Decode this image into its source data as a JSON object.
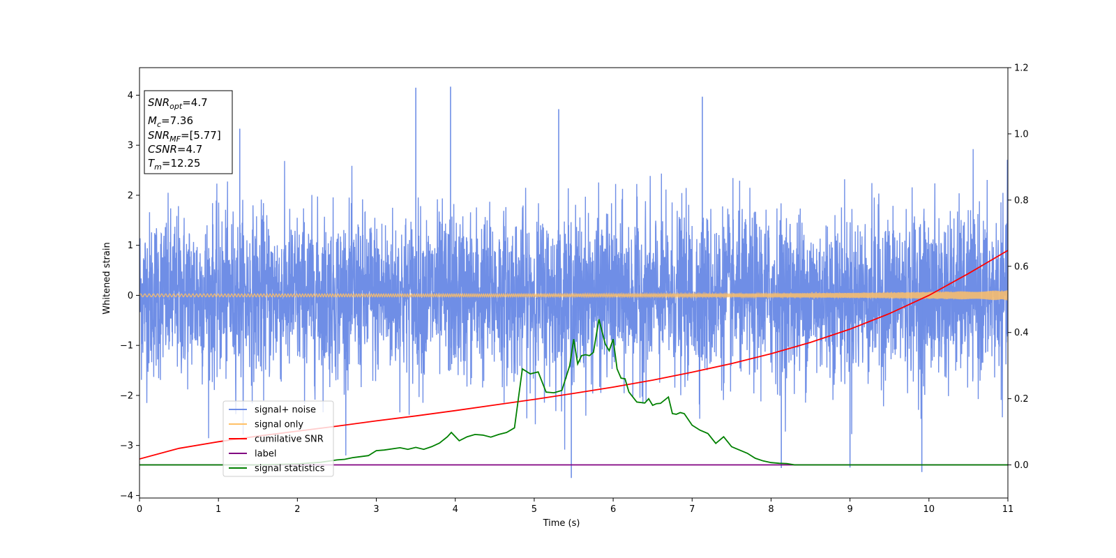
{
  "chart_data": {
    "type": "line",
    "xlabel": "Time (s)",
    "ylabel": "Whitened strain",
    "xlim": [
      0,
      11
    ],
    "ylim_left": [
      -4.05,
      4.55
    ],
    "ylim_right": [
      -0.1,
      1.2
    ],
    "x_ticks": [
      "0",
      "1",
      "2",
      "3",
      "4",
      "5",
      "6",
      "7",
      "8",
      "9",
      "10",
      "11"
    ],
    "y_left_ticks": [
      "4",
      "3",
      "2",
      "1",
      "0",
      "−1",
      "−2",
      "−3",
      "−4"
    ],
    "y_right_ticks": [
      "1.2",
      "1.0",
      "0.8",
      "0.6",
      "0.4",
      "0.2",
      "0.0"
    ],
    "y_left_tick_values": [
      4,
      3,
      2,
      1,
      0,
      -1,
      -2,
      -3,
      -4
    ],
    "y_right_tick_values": [
      1.2,
      1.0,
      0.8,
      0.6,
      0.4,
      0.2,
      0.0
    ],
    "legend_location": "lower-left",
    "info_box": {
      "snr_opt": {
        "base": "SNR",
        "sub": "opt",
        "value": "=4.7"
      },
      "mc": {
        "base": "M",
        "sub": "c",
        "value": "=7.36"
      },
      "snr_mf": {
        "base": "SNR",
        "sub": "MF",
        "value": "=[5.77]"
      },
      "csnr": {
        "base": "CSNR",
        "value": "=4.7"
      },
      "tm": {
        "base": "T",
        "sub": "m",
        "value": "=12.25"
      }
    },
    "series": [
      {
        "name": "signal+ noise",
        "axis": "left",
        "color": "#6f8ee6",
        "description_type": "noise",
        "notable_spikes": [
          {
            "x": 3.5,
            "y": 4.15
          },
          {
            "x": 3.94,
            "y": 4.17
          },
          {
            "x": 7.13,
            "y": 3.97
          },
          {
            "x": 5.31,
            "y": 3.72
          },
          {
            "x": 1.27,
            "y": 3.33
          },
          {
            "x": 5.47,
            "y": -3.65
          },
          {
            "x": 9.91,
            "y": -3.53
          },
          {
            "x": 8.13,
            "y": -3.45
          },
          {
            "x": 9.0,
            "y": -3.44
          }
        ]
      },
      {
        "name": "signal only",
        "axis": "left",
        "color": "#ffc066",
        "description_type": "chirp",
        "amplitude_start": 0.03,
        "amplitude_end": 0.1
      },
      {
        "name": "cumilative SNR",
        "axis": "right",
        "color": "#ff0000",
        "x": [
          0,
          0.5,
          1,
          1.5,
          2,
          2.5,
          3,
          3.5,
          4,
          4.5,
          5,
          5.5,
          6,
          6.5,
          7,
          7.5,
          8,
          8.5,
          9,
          9.5,
          10,
          10.5,
          11
        ],
        "values": [
          0.018,
          0.05,
          0.07,
          0.087,
          0.102,
          0.117,
          0.133,
          0.148,
          0.164,
          0.181,
          0.198,
          0.216,
          0.235,
          0.256,
          0.28,
          0.306,
          0.336,
          0.37,
          0.41,
          0.457,
          0.512,
          0.578,
          0.648
        ]
      },
      {
        "name": "label",
        "axis": "right",
        "color": "#800080",
        "x": [
          0,
          11
        ],
        "values": [
          0.0,
          0.0
        ]
      },
      {
        "name": "signal statistics",
        "axis": "right",
        "color": "#008000",
        "x": [
          0,
          1.5,
          2.0,
          2.3,
          2.5,
          2.6,
          2.7,
          2.8,
          2.9,
          3.0,
          3.1,
          3.3,
          3.4,
          3.5,
          3.6,
          3.7,
          3.8,
          3.9,
          3.95,
          4.05,
          4.15,
          4.25,
          4.35,
          4.45,
          4.55,
          4.65,
          4.75,
          4.85,
          4.95,
          5.05,
          5.15,
          5.25,
          5.35,
          5.45,
          5.5,
          5.55,
          5.6,
          5.65,
          5.7,
          5.75,
          5.82,
          5.9,
          5.95,
          6.0,
          6.05,
          6.1,
          6.15,
          6.2,
          6.3,
          6.4,
          6.45,
          6.5,
          6.55,
          6.6,
          6.7,
          6.75,
          6.8,
          6.85,
          6.9,
          7.0,
          7.1,
          7.2,
          7.3,
          7.4,
          7.5,
          7.55,
          7.6,
          7.7,
          7.8,
          7.9,
          8.0,
          8.1,
          8.2,
          8.3,
          8.4,
          8.5,
          8.6,
          8.7,
          8.8,
          8.9,
          9.0,
          9.1,
          9.3,
          9.6,
          10.0,
          10.5,
          11.0
        ],
        "values": [
          0.0,
          0.0,
          0.003,
          0.008,
          0.015,
          0.017,
          0.022,
          0.025,
          0.028,
          0.043,
          0.045,
          0.052,
          0.047,
          0.053,
          0.047,
          0.055,
          0.066,
          0.085,
          0.098,
          0.073,
          0.085,
          0.092,
          0.09,
          0.084,
          0.092,
          0.098,
          0.112,
          0.29,
          0.275,
          0.281,
          0.22,
          0.218,
          0.225,
          0.3,
          0.38,
          0.305,
          0.33,
          0.333,
          0.33,
          0.34,
          0.44,
          0.365,
          0.345,
          0.38,
          0.29,
          0.262,
          0.26,
          0.22,
          0.19,
          0.187,
          0.2,
          0.18,
          0.185,
          0.186,
          0.205,
          0.155,
          0.153,
          0.158,
          0.155,
          0.12,
          0.105,
          0.095,
          0.065,
          0.085,
          0.055,
          0.05,
          0.045,
          0.035,
          0.02,
          0.012,
          0.007,
          0.005,
          0.004,
          0.0,
          0.0,
          0.0,
          0.0,
          0.0,
          0.0,
          0.0,
          0.0,
          0.0,
          0.0,
          0.0,
          0.0,
          0.0,
          0.0
        ]
      }
    ]
  }
}
